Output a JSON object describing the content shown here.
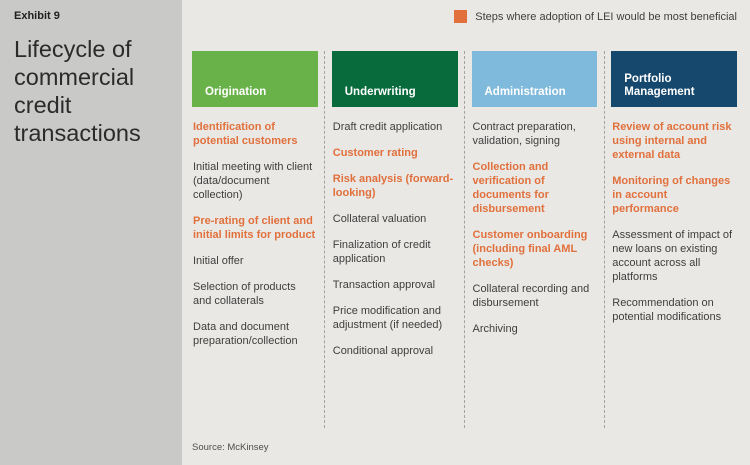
{
  "exhibit_label": "Exhibit 9",
  "title": "Lifecycle of commercial credit transactions",
  "legend": {
    "label": "Steps where adoption of LEI would be most beneficial",
    "color": "#e1703c"
  },
  "columns": [
    {
      "header": "Origination",
      "header_color": "#69b24a",
      "items": [
        {
          "text": "Identification of potential customers",
          "highlight": true
        },
        {
          "text": "Initial meeting with client (data/document collection)",
          "highlight": false
        },
        {
          "text": "Pre-rating of client and initial limits for product",
          "highlight": true
        },
        {
          "text": "Initial offer",
          "highlight": false
        },
        {
          "text": "Selection of products and collaterals",
          "highlight": false
        },
        {
          "text": "Data and document preparation/collection",
          "highlight": false
        }
      ]
    },
    {
      "header": "Underwriting",
      "header_color": "#076b3c",
      "items": [
        {
          "text": "Draft credit application",
          "highlight": false
        },
        {
          "text": "Customer rating",
          "highlight": true
        },
        {
          "text": "Risk analysis (forward-looking)",
          "highlight": true
        },
        {
          "text": "Collateral valuation",
          "highlight": false
        },
        {
          "text": "Finalization of credit application",
          "highlight": false
        },
        {
          "text": "Transaction approval",
          "highlight": false
        },
        {
          "text": "Price modification and adjustment (if needed)",
          "highlight": false
        },
        {
          "text": "Conditional approval",
          "highlight": false
        }
      ]
    },
    {
      "header": "Administration",
      "header_color": "#7fb9db",
      "items": [
        {
          "text": "Contract preparation, validation, signing",
          "highlight": false
        },
        {
          "text": "Collection and verification of documents for disbursement",
          "highlight": true
        },
        {
          "text": "Customer onboarding (including final AML checks)",
          "highlight": true
        },
        {
          "text": "Collateral recording and disbursement",
          "highlight": false
        },
        {
          "text": "Archiving",
          "highlight": false
        }
      ]
    },
    {
      "header": "Portfolio Management",
      "header_color": "#16486d",
      "items": [
        {
          "text": "Review of account risk using internal and external data",
          "highlight": true
        },
        {
          "text": "Monitoring of changes in account performance",
          "highlight": true
        },
        {
          "text": "Assessment of impact of new loans on existing account across all platforms",
          "highlight": false
        },
        {
          "text": "Recommendation on potential modifications",
          "highlight": false
        }
      ]
    }
  ],
  "source": "Source: McKinsey",
  "colors": {
    "page_background": "#e9e8e5",
    "sidebar_background": "#c9c9c7",
    "highlight_text": "#e1703c",
    "body_text": "#3e3e3e",
    "header_text": "#ffffff",
    "separator": "#a2a2a0"
  }
}
